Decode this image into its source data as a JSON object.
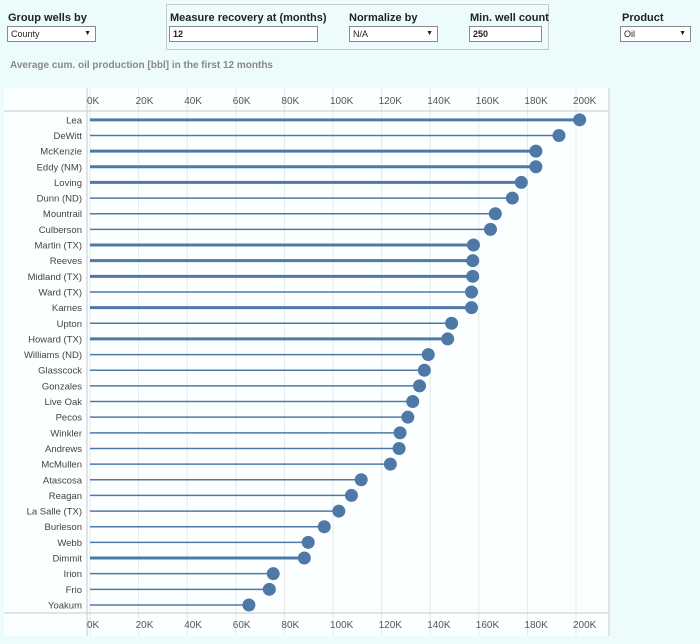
{
  "controls": {
    "group_by": {
      "label": "Group wells by",
      "value": "County"
    },
    "measure": {
      "label": "Measure recovery at (months)",
      "value": "12"
    },
    "normalize": {
      "label": "Normalize by",
      "value": "N/A"
    },
    "min_count": {
      "label": "Min. well count",
      "value": "250"
    },
    "product": {
      "label": "Product",
      "value": "Oil"
    }
  },
  "colors": {
    "bar": "#4e79a7",
    "grid": "#e4eaea",
    "background": "#ecfbfb"
  },
  "chart_data": {
    "type": "bar",
    "orientation": "horizontal",
    "style": "lollipop",
    "title": "Average cum. oil production [bbl] in the first 12 months",
    "xlabel": "",
    "ylabel": "",
    "xlim": [
      0,
      210000
    ],
    "xticks": [
      0,
      20000,
      40000,
      60000,
      80000,
      100000,
      120000,
      140000,
      160000,
      180000,
      200000
    ],
    "xtick_labels": [
      "0K",
      "20K",
      "40K",
      "60K",
      "80K",
      "100K",
      "120K",
      "140K",
      "160K",
      "180K",
      "200K"
    ],
    "grid": true,
    "categories": [
      "Lea",
      "DeWitt",
      "McKenzie",
      "Eddy (NM)",
      "Loving",
      "Dunn (ND)",
      "Mountrail",
      "Culberson",
      "Martin (TX)",
      "Reeves",
      "Midland (TX)",
      "Ward (TX)",
      "Karnes",
      "Upton",
      "Howard (TX)",
      "Williams (ND)",
      "Glasscock",
      "Gonzales",
      "Live Oak",
      "Pecos",
      "Winkler",
      "Andrews",
      "McMullen",
      "Atascosa",
      "Reagan",
      "La Salle (TX)",
      "Burleson",
      "Webb",
      "Dimmit",
      "Irion",
      "Frio",
      "Yoakum"
    ],
    "values": [
      201500,
      193000,
      183500,
      183500,
      177500,
      173800,
      166800,
      164800,
      157800,
      157500,
      157500,
      157000,
      157000,
      148800,
      147200,
      139200,
      137600,
      135600,
      132800,
      130800,
      127600,
      127200,
      123600,
      111600,
      107600,
      102400,
      96400,
      89800,
      88200,
      75400,
      73800,
      65400
    ],
    "line_weight": [
      3,
      1.5,
      3,
      3,
      3,
      1.5,
      1.5,
      1.5,
      3,
      3,
      3,
      1.5,
      3,
      1.5,
      3,
      1.5,
      1.5,
      1.5,
      1.5,
      1.5,
      1.5,
      1.5,
      1.5,
      1.5,
      1.5,
      1.5,
      1.5,
      1.5,
      3,
      1.5,
      1.5,
      1.5
    ]
  }
}
